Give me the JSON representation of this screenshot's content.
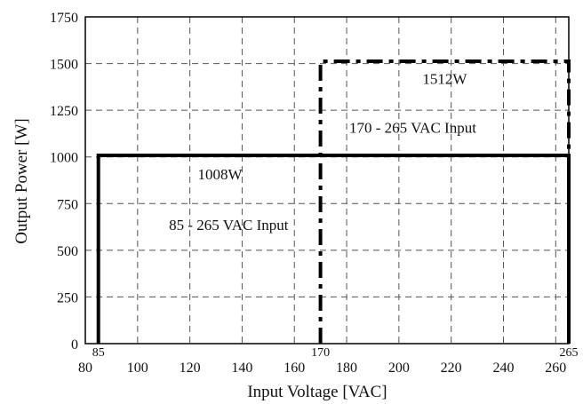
{
  "chart_data": {
    "type": "line",
    "title": "",
    "xlabel": "Input Voltage [VAC]",
    "ylabel": "Output Power [W]",
    "xlim": [
      80,
      265
    ],
    "ylim": [
      0,
      1750
    ],
    "x_ticks": [
      80,
      100,
      120,
      140,
      160,
      180,
      200,
      220,
      240,
      260
    ],
    "y_ticks": [
      0,
      250,
      500,
      750,
      1000,
      1250,
      1500,
      1750
    ],
    "grid": true,
    "grid_style": "dashed",
    "series": [
      {
        "line_style": "solid",
        "color": "#000000",
        "points": [
          [
            85,
            0
          ],
          [
            85,
            1008
          ],
          [
            265,
            1008
          ],
          [
            265,
            0
          ]
        ]
      },
      {
        "line_style": "dash-dot",
        "color": "#000000",
        "points": [
          [
            170,
            0
          ],
          [
            170,
            1512
          ],
          [
            265,
            1512
          ],
          [
            265,
            0
          ]
        ]
      }
    ],
    "marker_labels": [
      {
        "text": "85",
        "x": 85
      },
      {
        "text": "170",
        "x": 170
      },
      {
        "text": "265",
        "x": 265
      }
    ],
    "annotations": [
      {
        "text": "1008W",
        "x": 123,
        "y": 880
      },
      {
        "text": "85 - 265 VAC Input",
        "x": 112,
        "y": 608
      },
      {
        "text": "1512W",
        "x": 209,
        "y": 1390
      },
      {
        "text": "170 - 265 VAC Input",
        "x": 181,
        "y": 1130
      }
    ]
  }
}
